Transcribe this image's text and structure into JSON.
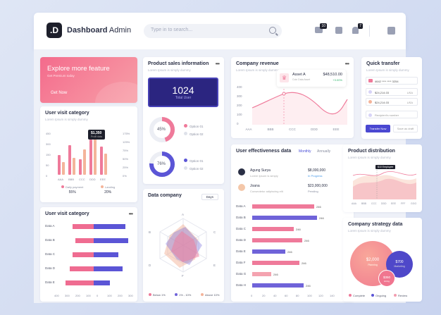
{
  "header": {
    "logo": ".D",
    "title_bold": "Dashboard",
    "title_rest": " Admin",
    "search_placeholder": "Type in to search...",
    "mail_badge": "10",
    "bell_badge": "7"
  },
  "explore": {
    "title": "Explore more feature",
    "subtitle": "Get Premium today",
    "button": "Get Now"
  },
  "visit1": {
    "title": "User visit category",
    "subtitle": "Lorem Ipsum is simply dummy",
    "tooltip_value": "$1,350",
    "tooltip_label": "Profit data",
    "left_axis": [
      "450",
      "300",
      "150",
      "50",
      "0"
    ],
    "right_axis": [
      "175%",
      "125%",
      "75%",
      "50%",
      "25%",
      "0%"
    ],
    "categories": [
      "AAA",
      "BBB",
      "CCC",
      "DDD",
      "EEE"
    ],
    "legend": [
      {
        "label": "Daily payment",
        "value": "55%",
        "color": "#ef7a9a"
      },
      {
        "label": "Landing",
        "value": "20%",
        "color": "#f4b49a"
      }
    ]
  },
  "visit2": {
    "title": "User visit category",
    "subtitle": "Lorem Ipsum is simply dummy",
    "rows": [
      "Data A",
      "Data B",
      "Data C",
      "Data D",
      "Data E"
    ],
    "axis": [
      "400",
      "300",
      "200",
      "100",
      "0",
      "100",
      "200",
      "300"
    ]
  },
  "product": {
    "title": "Product sales information",
    "subtitle": "Lorem Ipsum is simply dummy",
    "big_value": "1024",
    "big_label": "Total User",
    "donut1": {
      "value": "45%",
      "opt1": "Option 01",
      "opt2": "Option 02"
    },
    "donut2": {
      "value": "76%",
      "opt1": "Option 01",
      "opt2": "Option 02"
    }
  },
  "datacompany": {
    "title": "Data company",
    "select": "Days",
    "axes": [
      "A",
      "B",
      "C",
      "D",
      "E",
      "F"
    ],
    "legend": [
      {
        "label": "Below 1%",
        "color": "#ef7a9a"
      },
      {
        "label": "1% - 10%",
        "color": "#6f63d9"
      },
      {
        "label": "Above 10%",
        "color": "#f4b49a"
      }
    ]
  },
  "revenue": {
    "title": "Company revenue",
    "subtitle": "Lorem Ipsum is simply dummy",
    "asset_name": "Asset A",
    "asset_sub": "Coin Data Asset",
    "asset_value": "$48,510.00",
    "asset_change": "+3.00%",
    "y_axis": [
      "400",
      "300",
      "200",
      "100",
      "0"
    ],
    "x_axis": [
      "AAA",
      "BBB",
      "CCC",
      "DDD",
      "EEE"
    ]
  },
  "effect": {
    "title": "User effectiveness data",
    "tab_monthly": "Monthly",
    "tab_annually": "Annually",
    "users": [
      {
        "name": "Agung Surya",
        "sub": "Lorem Ipsum is simply",
        "amount": "$8,000,000",
        "status": "In Progress",
        "status_color": "#4a9ae8"
      },
      {
        "name": "Joana",
        "sub": "Consectetur adipiscing elit",
        "amount": "$23,000,000",
        "status": "Pending",
        "status_color": "#8a8fa1"
      }
    ],
    "rows": [
      {
        "label": "Data A",
        "value": "246",
        "color": "#ef7a9a",
        "w": 0.9
      },
      {
        "label": "Data B",
        "value": "246",
        "color": "#6f63d9",
        "w": 0.94
      },
      {
        "label": "Data C",
        "value": "246",
        "color": "#ef7a9a",
        "w": 0.6
      },
      {
        "label": "Data D",
        "value": "246",
        "color": "#ef7a9a",
        "w": 0.72
      },
      {
        "label": "Data E",
        "value": "246",
        "color": "#6f63d9",
        "w": 0.48
      },
      {
        "label": "Data F",
        "value": "246",
        "color": "#ef7a9a",
        "w": 0.68
      },
      {
        "label": "Data G",
        "value": "246",
        "color": "#f4a3b0",
        "w": 0.28
      },
      {
        "label": "Data H",
        "value": "246",
        "color": "#6f63d9",
        "w": 0.74
      }
    ],
    "axis": [
      "0",
      "20",
      "40",
      "60",
      "80",
      "100",
      "120",
      "140"
    ]
  },
  "transfer": {
    "title": "Quick transfer",
    "subtitle": "Lorem Ipsum is simply dummy",
    "card_num": "4642 **** **** 3254",
    "rows": [
      {
        "amount": "$24,214.03",
        "cur": "USA"
      },
      {
        "amount": "$24,214.03",
        "cur": "USA"
      }
    ],
    "recipient": "Recipient's number",
    "btn_primary": "Transfer Now",
    "btn_secondary": "Save as draft"
  },
  "distribution": {
    "title": "Product distribution",
    "subtitle": "Lorem Ipsum is simply dummy",
    "tip": "$10 Employee",
    "x_axis": [
      "AAA",
      "BBB",
      "CCC",
      "DDD",
      "EEE",
      "FFF",
      "GGG"
    ]
  },
  "strategy": {
    "title": "Company strategy data",
    "subtitle": "Lorem Ipsum is simply dummy",
    "big": {
      "value": "$2,000",
      "label": "Planning"
    },
    "mid": {
      "value": "$700",
      "label": "Marketing"
    },
    "small": {
      "value": "$350",
      "label": "Hiring"
    },
    "legend": [
      {
        "label": "Complete",
        "color": "#ef7a9a"
      },
      {
        "label": "Ongoing",
        "color": "#5b55d6"
      },
      {
        "label": "Review",
        "color": "#f29db0"
      }
    ]
  }
}
